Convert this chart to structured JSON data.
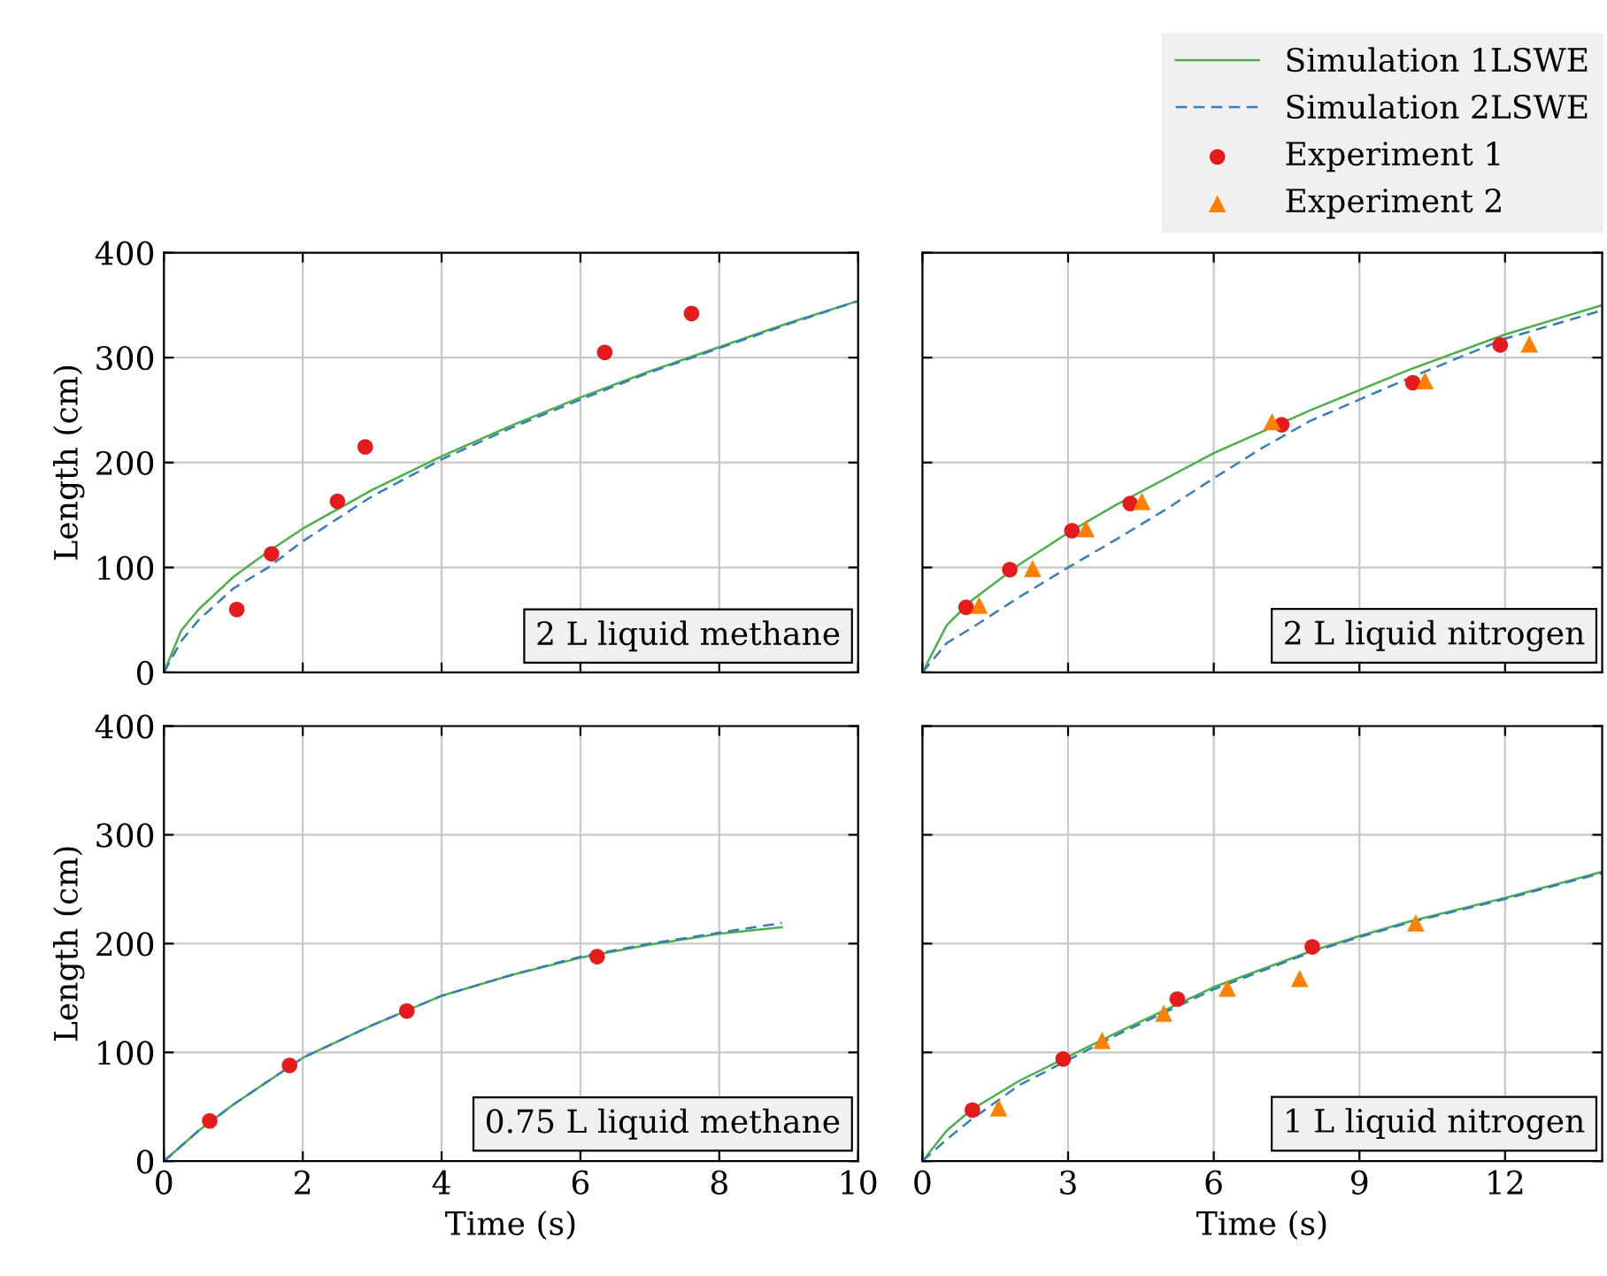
{
  "chart_data": [
    {
      "type": "line",
      "ylabel": "Length (cm)",
      "xlim": [
        0,
        10
      ],
      "xticks": [
        0,
        2,
        4,
        6,
        8,
        10
      ],
      "ylim": [
        0,
        400
      ],
      "yticks": [
        0,
        100,
        200,
        300,
        400
      ],
      "grid": true,
      "tick_labels": "y",
      "annotations": [
        "2 L liquid methane"
      ],
      "series": [
        {
          "type": "line",
          "line_style": "solid",
          "marker": "none",
          "color": "#4daf4a",
          "x": [
            0,
            0.25,
            0.5,
            1,
            1.5,
            2,
            3,
            4,
            5,
            6,
            7,
            8,
            9,
            10
          ],
          "values": [
            0,
            40,
            60,
            91,
            115,
            137,
            174,
            206,
            235,
            262,
            287,
            310,
            333,
            354
          ]
        },
        {
          "type": "line",
          "line_style": "dashed",
          "marker": "none",
          "color": "#377eb8",
          "x": [
            0,
            0.25,
            0.5,
            1,
            1.5,
            2,
            3,
            4,
            5,
            6,
            7,
            8,
            9,
            10
          ],
          "values": [
            0,
            30,
            50,
            80,
            100,
            125,
            168,
            203,
            233,
            260,
            286,
            309,
            332,
            354
          ]
        },
        {
          "type": "scatter",
          "marker": "circle",
          "color": "#e41a1c",
          "x": [
            1.05,
            1.55,
            2.5,
            2.9,
            6.35,
            7.6
          ],
          "values": [
            60,
            113,
            163,
            215,
            305,
            342
          ]
        }
      ]
    },
    {
      "type": "line",
      "xlim": [
        0,
        14
      ],
      "xticks": [
        0,
        3,
        6,
        9,
        12
      ],
      "ylim": [
        0,
        400
      ],
      "yticks": [
        0,
        100,
        200,
        300,
        400
      ],
      "grid": true,
      "tick_labels": false,
      "legend": "top right",
      "annotations": [
        "2 L liquid nitrogen"
      ],
      "series": [
        {
          "name": "Simulation 1LSWE",
          "type": "line",
          "line_style": "solid",
          "marker": "none",
          "color": "#4daf4a",
          "x": [
            0,
            0.5,
            1,
            2,
            3,
            4,
            6,
            8,
            10,
            12,
            14
          ],
          "values": [
            0,
            45,
            68,
            103,
            133,
            160,
            209,
            250,
            288,
            322,
            350
          ]
        },
        {
          "name": "Simulation 2LSWE",
          "type": "line",
          "line_style": "dashed",
          "marker": "none",
          "color": "#377eb8",
          "x": [
            0,
            0.5,
            1,
            2,
            3,
            4,
            5,
            6,
            7,
            8,
            10,
            12,
            14
          ],
          "values": [
            0,
            28,
            42,
            72,
            100,
            127,
            155,
            185,
            214,
            240,
            280,
            318,
            345
          ]
        },
        {
          "name": "Experiment 1",
          "type": "scatter",
          "marker": "circle",
          "color": "#e41a1c",
          "x": [
            0.9,
            1.8,
            3.08,
            4.28,
            7.4,
            10.1,
            11.9
          ],
          "values": [
            62,
            98,
            135,
            161,
            236,
            276,
            312
          ]
        },
        {
          "name": "Experiment 2",
          "type": "scatter",
          "marker": "triangle",
          "color": "#ff7f00",
          "x": [
            1.17,
            2.27,
            3.37,
            4.52,
            7.2,
            10.35,
            12.5
          ],
          "values": [
            64,
            99,
            137,
            163,
            239,
            278,
            313
          ]
        }
      ]
    },
    {
      "type": "line",
      "xlabel": "Time (s)",
      "ylabel": "Length (cm)",
      "xlim": [
        0,
        10
      ],
      "xticks": [
        0,
        2,
        4,
        6,
        8,
        10
      ],
      "ylim": [
        0,
        400
      ],
      "yticks": [
        0,
        100,
        200,
        300,
        400
      ],
      "grid": true,
      "annotations": [
        "0.75 L liquid methane"
      ],
      "series": [
        {
          "type": "line",
          "line_style": "solid",
          "marker": "none",
          "color": "#4daf4a",
          "x": [
            0,
            0.5,
            1,
            2,
            3,
            4,
            5,
            6,
            7,
            8,
            8.9
          ],
          "values": [
            0,
            28,
            52,
            95,
            125,
            152,
            171,
            187,
            199,
            209,
            215
          ]
        },
        {
          "type": "line",
          "line_style": "dashed",
          "marker": "none",
          "color": "#377eb8",
          "x": [
            0,
            0.5,
            1,
            2,
            3,
            4,
            5,
            6,
            7,
            8,
            8.9
          ],
          "values": [
            0,
            28,
            52,
            95,
            125,
            152,
            171,
            188,
            200,
            210,
            219
          ]
        },
        {
          "type": "scatter",
          "marker": "circle",
          "color": "#e41a1c",
          "x": [
            0.66,
            1.81,
            3.5,
            6.24
          ],
          "values": [
            37,
            88,
            138,
            188
          ]
        }
      ]
    },
    {
      "type": "line",
      "xlabel": "Time (s)",
      "xlim": [
        0,
        14
      ],
      "xticks": [
        0,
        3,
        6,
        9,
        12
      ],
      "ylim": [
        0,
        400
      ],
      "yticks": [
        0,
        100,
        200,
        300,
        400
      ],
      "grid": true,
      "tick_labels": "x",
      "annotations": [
        "1 L liquid nitrogen"
      ],
      "series": [
        {
          "type": "line",
          "line_style": "solid",
          "marker": "none",
          "color": "#4daf4a",
          "x": [
            0,
            0.5,
            1,
            2,
            3,
            4,
            6,
            8,
            9,
            10,
            12,
            14
          ],
          "values": [
            0,
            28,
            47,
            74,
            96,
            118,
            160,
            193,
            207,
            220,
            242,
            266
          ]
        },
        {
          "type": "line",
          "line_style": "dashed",
          "marker": "none",
          "color": "#377eb8",
          "x": [
            0,
            0.5,
            1,
            2,
            3,
            4,
            6,
            8,
            9,
            10,
            12,
            14
          ],
          "values": [
            0,
            20,
            38,
            70,
            93,
            116,
            158,
            192,
            206,
            219,
            241,
            265
          ]
        },
        {
          "type": "scatter",
          "marker": "circle",
          "color": "#e41a1c",
          "x": [
            1.03,
            2.9,
            5.25,
            8.03
          ],
          "values": [
            47,
            94,
            149,
            197
          ]
        },
        {
          "type": "scatter",
          "marker": "triangle",
          "color": "#ff7f00",
          "x": [
            1.57,
            3.7,
            4.97,
            6.28,
            7.77,
            10.16
          ],
          "values": [
            49,
            111,
            136,
            159,
            168,
            219
          ]
        }
      ]
    }
  ]
}
